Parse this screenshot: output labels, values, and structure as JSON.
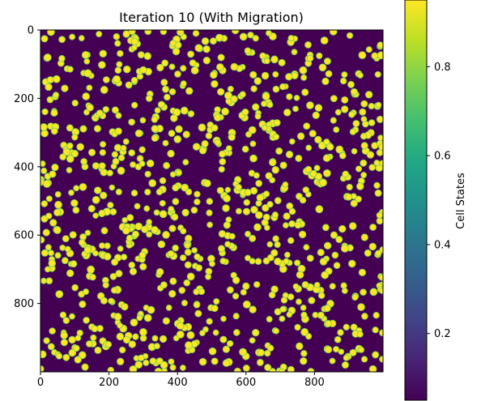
{
  "chart_data": {
    "type": "heatmap",
    "title": "Iteration 10 (With Migration)",
    "xlabel": "",
    "ylabel": "",
    "xlim": [
      0,
      1000
    ],
    "ylim": [
      1000,
      0
    ],
    "x_ticks": [
      0,
      200,
      400,
      600,
      800
    ],
    "y_ticks": [
      0,
      200,
      400,
      600,
      800
    ],
    "colorbar": {
      "label": "Cell States",
      "range": [
        0.05,
        0.95
      ],
      "ticks": [
        0.2,
        0.4,
        0.6,
        0.8
      ],
      "colormap": "viridis"
    },
    "background_value": 0.05,
    "cell_value": 0.95,
    "approx_cell_count": 950,
    "approx_cell_diameter": 16,
    "colors": {
      "low": "#440154",
      "high": "#fde725",
      "edge": "#7ad151"
    }
  }
}
